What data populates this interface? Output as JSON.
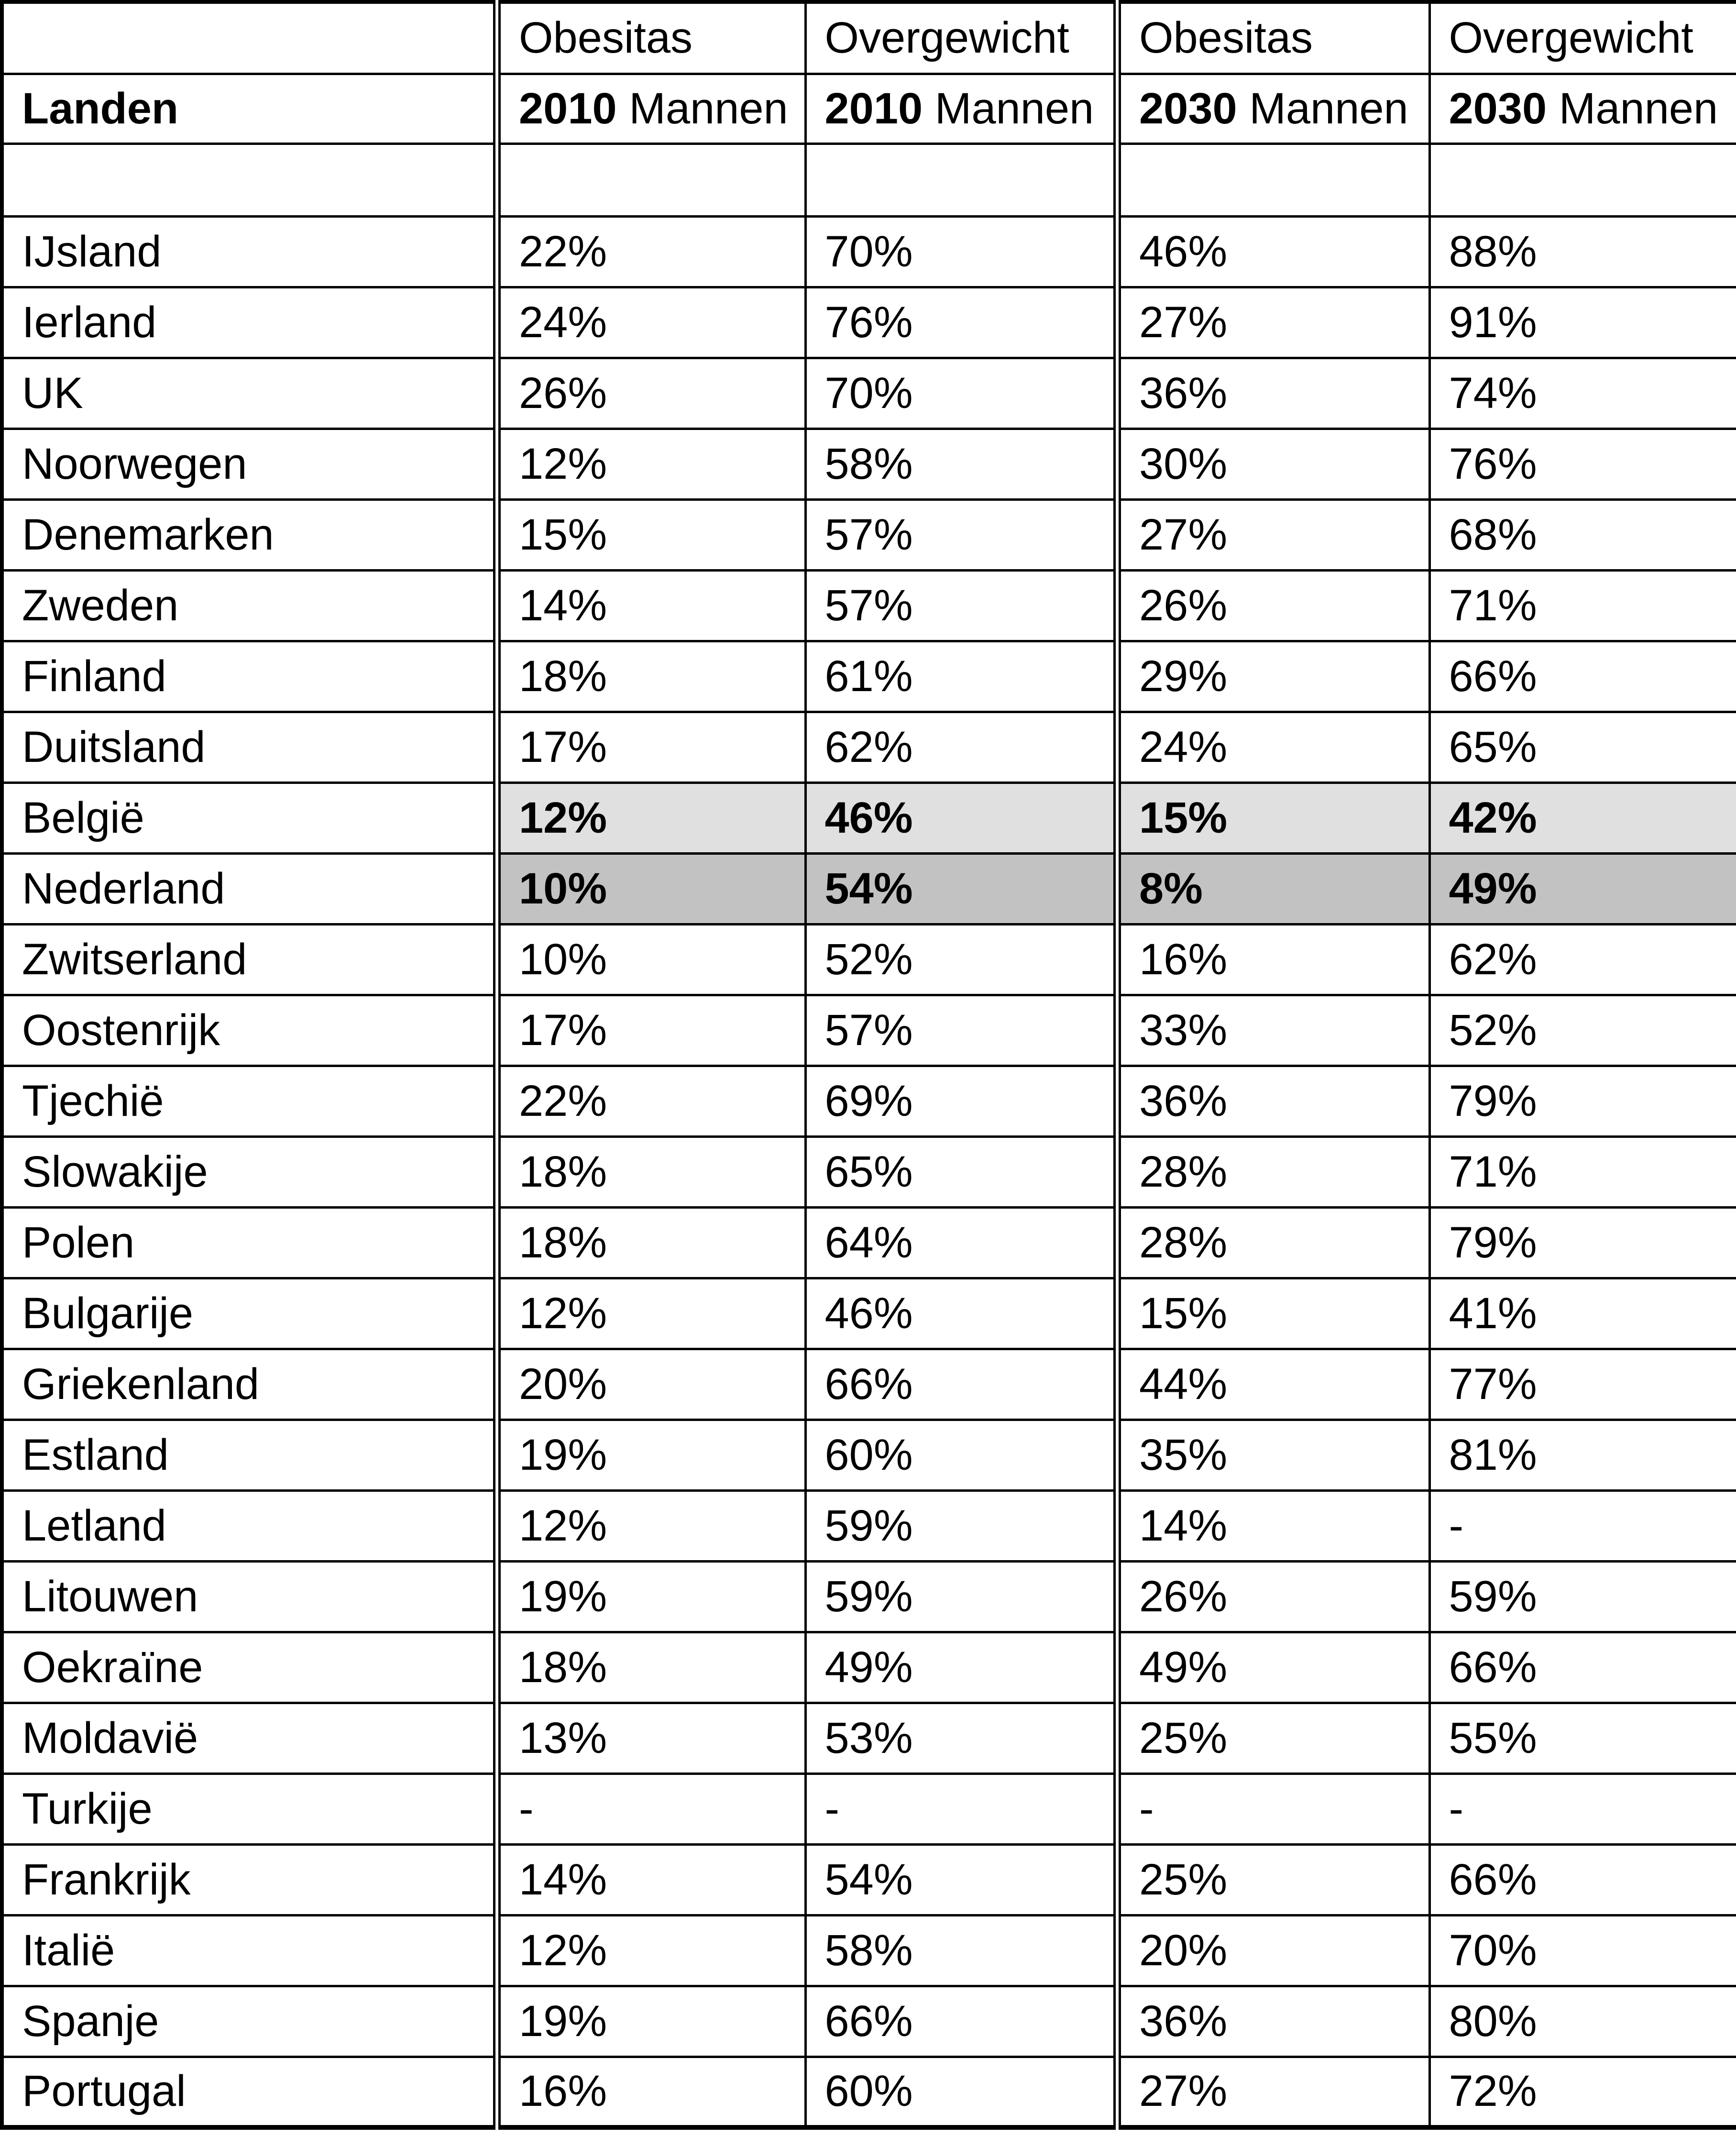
{
  "chart_data": {
    "type": "table",
    "header_row1": [
      "",
      "Obesitas",
      "Overgewicht",
      "Obesitas",
      "Overgewicht"
    ],
    "header_row2": {
      "landen": "Landen",
      "cols": [
        {
          "year": "2010",
          "group": "Mannen"
        },
        {
          "year": "2010",
          "group": "Mannen"
        },
        {
          "year": "2030",
          "group": "Mannen"
        },
        {
          "year": "2030",
          "group": "Mannen"
        }
      ]
    },
    "rows": [
      {
        "land": "IJsland",
        "values": [
          "22%",
          "70%",
          "46%",
          "88%"
        ],
        "highlight": "none"
      },
      {
        "land": "Ierland",
        "values": [
          "24%",
          "76%",
          "27%",
          "91%"
        ],
        "highlight": "none"
      },
      {
        "land": "UK",
        "values": [
          "26%",
          "70%",
          "36%",
          "74%"
        ],
        "highlight": "none"
      },
      {
        "land": "Noorwegen",
        "values": [
          "12%",
          "58%",
          "30%",
          "76%"
        ],
        "highlight": "none"
      },
      {
        "land": "Denemarken",
        "values": [
          "15%",
          "57%",
          "27%",
          "68%"
        ],
        "highlight": "none"
      },
      {
        "land": "Zweden",
        "values": [
          "14%",
          "57%",
          "26%",
          "71%"
        ],
        "highlight": "none"
      },
      {
        "land": "Finland",
        "values": [
          "18%",
          "61%",
          "29%",
          "66%"
        ],
        "highlight": "none"
      },
      {
        "land": "Duitsland",
        "values": [
          "17%",
          "62%",
          "24%",
          "65%"
        ],
        "highlight": "none"
      },
      {
        "land": "België",
        "values": [
          "12%",
          "46%",
          "15%",
          "42%"
        ],
        "highlight": "light"
      },
      {
        "land": "Nederland",
        "values": [
          "10%",
          "54%",
          "8%",
          "49%"
        ],
        "highlight": "dark"
      },
      {
        "land": "Zwitserland",
        "values": [
          "10%",
          "52%",
          "16%",
          "62%"
        ],
        "highlight": "none"
      },
      {
        "land": "Oostenrijk",
        "values": [
          "17%",
          "57%",
          "33%",
          "52%"
        ],
        "highlight": "none"
      },
      {
        "land": "Tjechië",
        "values": [
          "22%",
          "69%",
          "36%",
          "79%"
        ],
        "highlight": "none"
      },
      {
        "land": "Slowakije",
        "values": [
          "18%",
          "65%",
          "28%",
          "71%"
        ],
        "highlight": "none"
      },
      {
        "land": "Polen",
        "values": [
          "18%",
          "64%",
          "28%",
          "79%"
        ],
        "highlight": "none"
      },
      {
        "land": "Bulgarije",
        "values": [
          "12%",
          "46%",
          "15%",
          "41%"
        ],
        "highlight": "none"
      },
      {
        "land": "Griekenland",
        "values": [
          "20%",
          "66%",
          "44%",
          "77%"
        ],
        "highlight": "none"
      },
      {
        "land": "Estland",
        "values": [
          "19%",
          "60%",
          "35%",
          "81%"
        ],
        "highlight": "none"
      },
      {
        "land": "Letland",
        "values": [
          "12%",
          "59%",
          "14%",
          "-"
        ],
        "highlight": "none"
      },
      {
        "land": "Litouwen",
        "values": [
          "19%",
          "59%",
          "26%",
          "59%"
        ],
        "highlight": "none"
      },
      {
        "land": "Oekraïne",
        "values": [
          "18%",
          "49%",
          "49%",
          "66%"
        ],
        "highlight": "none"
      },
      {
        "land": "Moldavië",
        "values": [
          "13%",
          "53%",
          "25%",
          "55%"
        ],
        "highlight": "none"
      },
      {
        "land": "Turkije",
        "values": [
          "-",
          "-",
          "-",
          "-"
        ],
        "highlight": "none"
      },
      {
        "land": "Frankrijk",
        "values": [
          "14%",
          "54%",
          "25%",
          "66%"
        ],
        "highlight": "none"
      },
      {
        "land": "Italië",
        "values": [
          "12%",
          "58%",
          "20%",
          "70%"
        ],
        "highlight": "none"
      },
      {
        "land": "Spanje",
        "values": [
          "19%",
          "66%",
          "36%",
          "80%"
        ],
        "highlight": "none"
      },
      {
        "land": "Portugal",
        "values": [
          "16%",
          "60%",
          "27%",
          "72%"
        ],
        "highlight": "none"
      }
    ]
  },
  "colors": {
    "border": "#000000",
    "highlight_belgie": "#e0e0e0",
    "highlight_nederland": "#c2c2c2"
  }
}
